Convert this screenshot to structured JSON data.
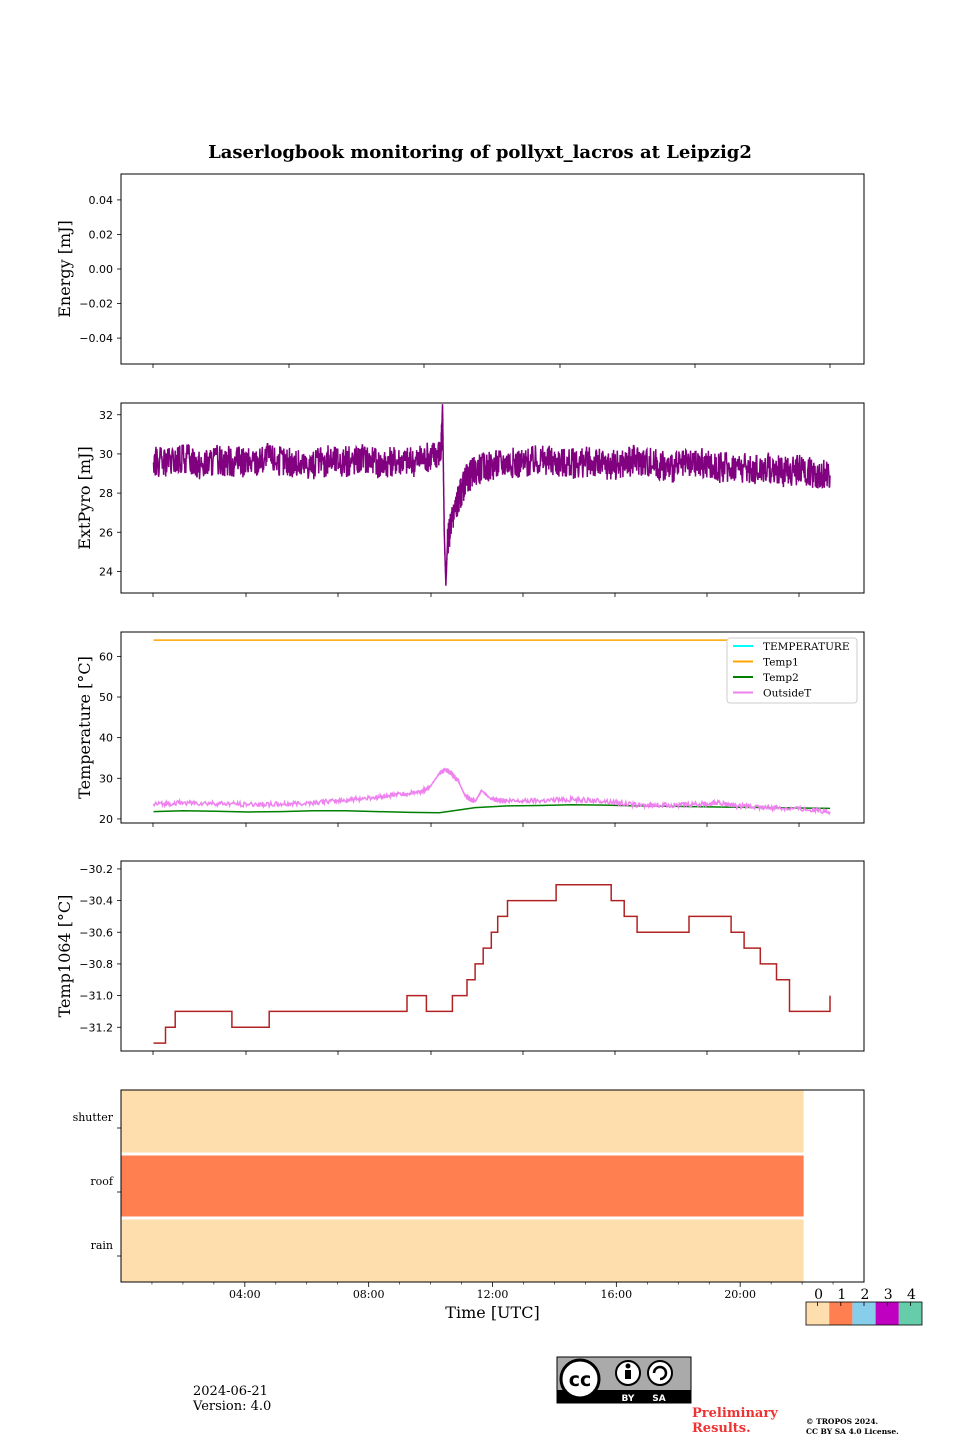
{
  "title": "Laserlogbook monitoring of pollyxt_lacros at Leipzig2",
  "footer": {
    "date": "2024-06-21",
    "version": "Version: 4.0",
    "preliminary": "Preliminary Results.",
    "copyright_line1": "© TROPOS 2024.",
    "copyright_line2": "CC BY SA 4.0 License.",
    "cc_by": "BY",
    "cc_sa": "SA",
    "cc_mark": "cc"
  },
  "chart_data": [
    {
      "type": "line",
      "ylabel": "Energy [mJ]",
      "ylim": [
        -0.055,
        0.055
      ],
      "yticks": [
        0.04,
        0.02,
        0.0,
        -0.02,
        -0.04
      ],
      "ytick_labels": [
        "0.04",
        "0.02",
        "0.00",
        "−0.02",
        "−0.04"
      ],
      "xlim": [
        0,
        24
      ],
      "series": []
    },
    {
      "type": "line",
      "ylabel": "ExtPyro [mJ]",
      "ylim": [
        22.9,
        32.6
      ],
      "yticks": [
        32,
        30,
        28,
        26,
        24
      ],
      "ytick_labels": [
        "32",
        "30",
        "28",
        "26",
        "24"
      ],
      "xlim": [
        0,
        24
      ],
      "series": [
        {
          "color": "#800080",
          "x": [
            1.08,
            1.6,
            2.1,
            2.6,
            3.1,
            3.6,
            4.1,
            4.6,
            5.1,
            5.6,
            6.1,
            6.6,
            7.1,
            7.6,
            8.1,
            8.6,
            9.1,
            9.6,
            9.95,
            10.0,
            10.05,
            10.1,
            10.15,
            10.3,
            10.5,
            10.7,
            11.0,
            11.5,
            12.0,
            12.5,
            13.0,
            13.5,
            14.0,
            14.5,
            15.0,
            15.5,
            16.0,
            16.5,
            17.0,
            17.5,
            18.0,
            18.5,
            19.0,
            19.5,
            20.0,
            20.5,
            21.0,
            21.5,
            21.95
          ],
          "y": [
            29.6,
            29.5,
            29.8,
            29.4,
            29.7,
            29.6,
            29.5,
            29.8,
            29.6,
            29.4,
            29.5,
            29.7,
            29.6,
            29.8,
            29.5,
            29.7,
            29.6,
            29.9,
            30.1,
            32.1,
            26.0,
            23.3,
            25.5,
            26.8,
            27.8,
            28.6,
            29.2,
            29.4,
            29.6,
            29.5,
            29.7,
            29.6,
            29.5,
            29.6,
            29.4,
            29.5,
            29.7,
            29.5,
            29.3,
            29.4,
            29.5,
            29.3,
            29.4,
            29.2,
            29.3,
            29.1,
            29.2,
            29.0,
            28.9
          ],
          "noise": 0.8
        }
      ]
    },
    {
      "type": "line",
      "ylabel": "Temperature [°C]",
      "ylim": [
        19,
        66
      ],
      "yticks": [
        60,
        50,
        40,
        30,
        20
      ],
      "ytick_labels": [
        "60",
        "50",
        "40",
        "30",
        "20"
      ],
      "xlim": [
        0,
        24
      ],
      "legend_position": "upper right",
      "series": [
        {
          "name": "TEMPERATURE",
          "color": "#00ffff",
          "x": [],
          "y": []
        },
        {
          "name": "Temp1",
          "color": "#ffa500",
          "x": [
            1.08,
            21.95
          ],
          "y": [
            64,
            64
          ]
        },
        {
          "name": "Temp2",
          "color": "#008000",
          "x": [
            1.08,
            2.0,
            3.0,
            4.0,
            5.0,
            6.0,
            7.0,
            8.0,
            9.0,
            9.9,
            10.5,
            11.0,
            12.0,
            13.0,
            14.0,
            15.0,
            16.0,
            17.0,
            18.0,
            19.0,
            20.0,
            21.0,
            21.95
          ],
          "y": [
            21.8,
            22.0,
            21.9,
            21.7,
            21.8,
            22.0,
            22.0,
            21.8,
            21.6,
            21.5,
            22.2,
            22.8,
            23.2,
            23.3,
            23.5,
            23.4,
            23.2,
            23.1,
            23.0,
            22.9,
            22.8,
            22.7,
            22.6
          ]
        },
        {
          "name": "OutsideT",
          "color": "#ee82ee",
          "x": [
            1.08,
            2.0,
            3.0,
            4.0,
            5.0,
            6.0,
            7.0,
            8.0,
            8.6,
            9.3,
            9.6,
            9.9,
            10.1,
            10.3,
            10.5,
            10.7,
            11.0,
            11.2,
            11.5,
            12.0,
            13.0,
            14.0,
            15.0,
            16.0,
            17.0,
            18.0,
            18.5,
            19.0,
            20.0,
            21.0,
            21.95
          ],
          "y": [
            23.6,
            24.0,
            23.8,
            23.6,
            23.6,
            24.0,
            24.6,
            25.4,
            26.0,
            26.6,
            27.8,
            31.2,
            32.2,
            31.0,
            29.0,
            25.6,
            24.2,
            27.0,
            24.8,
            24.4,
            24.6,
            24.8,
            24.4,
            23.4,
            23.4,
            23.6,
            24.0,
            23.2,
            22.8,
            22.6,
            21.8
          ],
          "noise": 0.6
        }
      ]
    },
    {
      "type": "line",
      "ylabel": "Temp1064 [°C]",
      "ylim": [
        -31.35,
        -30.15
      ],
      "yticks": [
        -30.2,
        -30.4,
        -30.6,
        -30.8,
        -31.0,
        -31.2
      ],
      "ytick_labels": [
        "−30.2",
        "−30.4",
        "−30.6",
        "−30.8",
        "−31.0",
        "−31.2"
      ],
      "xlim": [
        0,
        24
      ],
      "series": [
        {
          "color": "#b22222",
          "x": [
            1.08,
            1.45,
            1.45,
            1.75,
            1.75,
            2.05,
            2.05,
            3.5,
            3.5,
            4.65,
            4.65,
            5.75,
            5.75,
            8.0,
            8.0,
            8.9,
            8.9,
            9.5,
            9.5,
            10.3,
            10.3,
            10.75,
            10.75,
            11.0,
            11.0,
            11.25,
            11.25,
            11.5,
            11.5,
            11.7,
            11.7,
            12.0,
            12.0,
            13.5,
            13.5,
            14.0,
            14.0,
            15.2,
            15.2,
            15.6,
            15.6,
            16.0,
            16.0,
            16.45,
            16.45,
            17.6,
            17.6,
            18.0,
            18.0,
            18.9,
            18.9,
            19.3,
            19.3,
            19.8,
            19.8,
            20.3,
            20.3,
            20.7,
            20.7,
            21.95,
            21.95
          ],
          "y": [
            -31.3,
            -31.3,
            -31.2,
            -31.2,
            -31.1,
            -31.1,
            -31.1,
            -31.1,
            -31.2,
            -31.2,
            -31.1,
            -31.1,
            -31.1,
            -31.1,
            -31.1,
            -31.1,
            -31.0,
            -31.0,
            -31.1,
            -31.1,
            -31.0,
            -31.0,
            -30.9,
            -30.9,
            -30.8,
            -30.8,
            -30.7,
            -30.7,
            -30.6,
            -30.6,
            -30.5,
            -30.5,
            -30.4,
            -30.4,
            -30.3,
            -30.3,
            -30.3,
            -30.3,
            -30.4,
            -30.4,
            -30.5,
            -30.5,
            -30.6,
            -30.6,
            -30.6,
            -30.6,
            -30.5,
            -30.5,
            -30.5,
            -30.5,
            -30.6,
            -30.6,
            -30.7,
            -30.7,
            -30.8,
            -30.8,
            -30.9,
            -30.9,
            -31.1,
            -31.1,
            -31.0
          ]
        }
      ]
    },
    {
      "type": "heatmap",
      "categories": [
        "shutter",
        "roof",
        "rain"
      ],
      "x_range": [
        0,
        22.05
      ],
      "xlim": [
        0,
        24
      ],
      "values": [
        0,
        1,
        0
      ],
      "xlabel": "Time [UTC]",
      "xticks": [
        4,
        8,
        12,
        16,
        20
      ],
      "xtick_labels": [
        "04:00",
        "08:00",
        "12:00",
        "16:00",
        "20:00"
      ],
      "colorbar": {
        "labels": [
          "0",
          "1",
          "2",
          "3",
          "4"
        ],
        "colors": [
          "#ffdead",
          "#ff7f50",
          "#87ceeb",
          "#c000c0",
          "#66cdaa"
        ]
      }
    }
  ]
}
